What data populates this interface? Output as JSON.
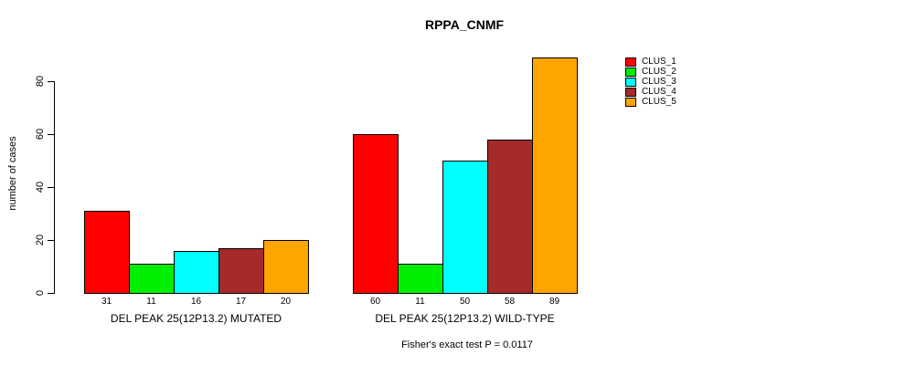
{
  "title": "RPPA_CNMF",
  "y_axis": {
    "label": "number of cases"
  },
  "footer": "Fisher's exact test P = 0.0117",
  "legend": [
    {
      "label": "CLUS_1",
      "color": "#FF0000"
    },
    {
      "label": "CLUS_2",
      "color": "#00EE00"
    },
    {
      "label": "CLUS_3",
      "color": "#00FFFF"
    },
    {
      "label": "CLUS_4",
      "color": "#A52A2A"
    },
    {
      "label": "CLUS_5",
      "color": "#FFA500"
    }
  ],
  "chart_data": {
    "type": "bar",
    "title": "RPPA_CNMF",
    "xlabel": "",
    "ylabel": "number of cases",
    "ylim": [
      0,
      89
    ],
    "yticks": [
      0,
      20,
      40,
      60,
      80
    ],
    "grid": false,
    "legend_position": "right",
    "bar_value_labels": true,
    "categories": [
      "DEL PEAK 25(12P13.2) MUTATED",
      "DEL PEAK 25(12P13.2) WILD-TYPE"
    ],
    "series": [
      {
        "name": "CLUS_1",
        "color": "#FF0000",
        "values": [
          31,
          60
        ]
      },
      {
        "name": "CLUS_2",
        "color": "#00EE00",
        "values": [
          11,
          11
        ]
      },
      {
        "name": "CLUS_3",
        "color": "#00FFFF",
        "values": [
          16,
          50
        ]
      },
      {
        "name": "CLUS_4",
        "color": "#A52A2A",
        "values": [
          17,
          58
        ]
      },
      {
        "name": "CLUS_5",
        "color": "#FFA500",
        "values": [
          20,
          89
        ]
      }
    ],
    "annotation": "Fisher's exact test P = 0.0117"
  }
}
